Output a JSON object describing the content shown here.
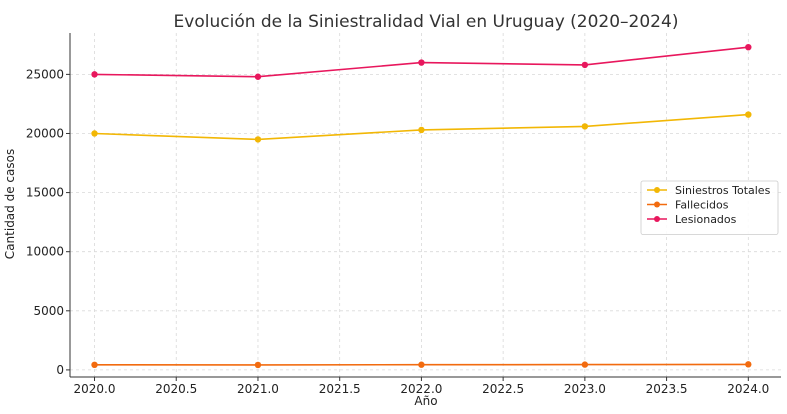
{
  "chart_data": {
    "type": "line",
    "title": "Evolución de la Siniestralidad Vial en Uruguay (2020–2024)",
    "xlabel": "Año",
    "ylabel": "Cantidad de casos",
    "x": [
      2020,
      2021,
      2022,
      2023,
      2024
    ],
    "xlim": [
      2019.85,
      2024.2
    ],
    "ylim": [
      -600,
      28500
    ],
    "xticks": [
      2020.0,
      2020.5,
      2021.0,
      2021.5,
      2022.0,
      2022.5,
      2023.0,
      2023.5,
      2024.0
    ],
    "xtick_labels": [
      "2020.0",
      "2020.5",
      "2021.0",
      "2021.5",
      "2022.0",
      "2022.5",
      "2023.0",
      "2023.5",
      "2024.0"
    ],
    "yticks": [
      0,
      5000,
      10000,
      15000,
      20000,
      25000
    ],
    "ytick_labels": [
      "0",
      "5000",
      "10000",
      "15000",
      "20000",
      "25000"
    ],
    "grid": true,
    "legend_position": "center-right",
    "series": [
      {
        "name": "Siniestros Totales",
        "color": "#f2b705",
        "values": [
          20000,
          19500,
          20300,
          20600,
          21600
        ]
      },
      {
        "name": "Fallecidos",
        "color": "#f26b0f",
        "values": [
          430,
          420,
          440,
          450,
          470
        ]
      },
      {
        "name": "Lesionados",
        "color": "#e8175d",
        "values": [
          25000,
          24800,
          26000,
          25800,
          27300
        ]
      }
    ]
  }
}
